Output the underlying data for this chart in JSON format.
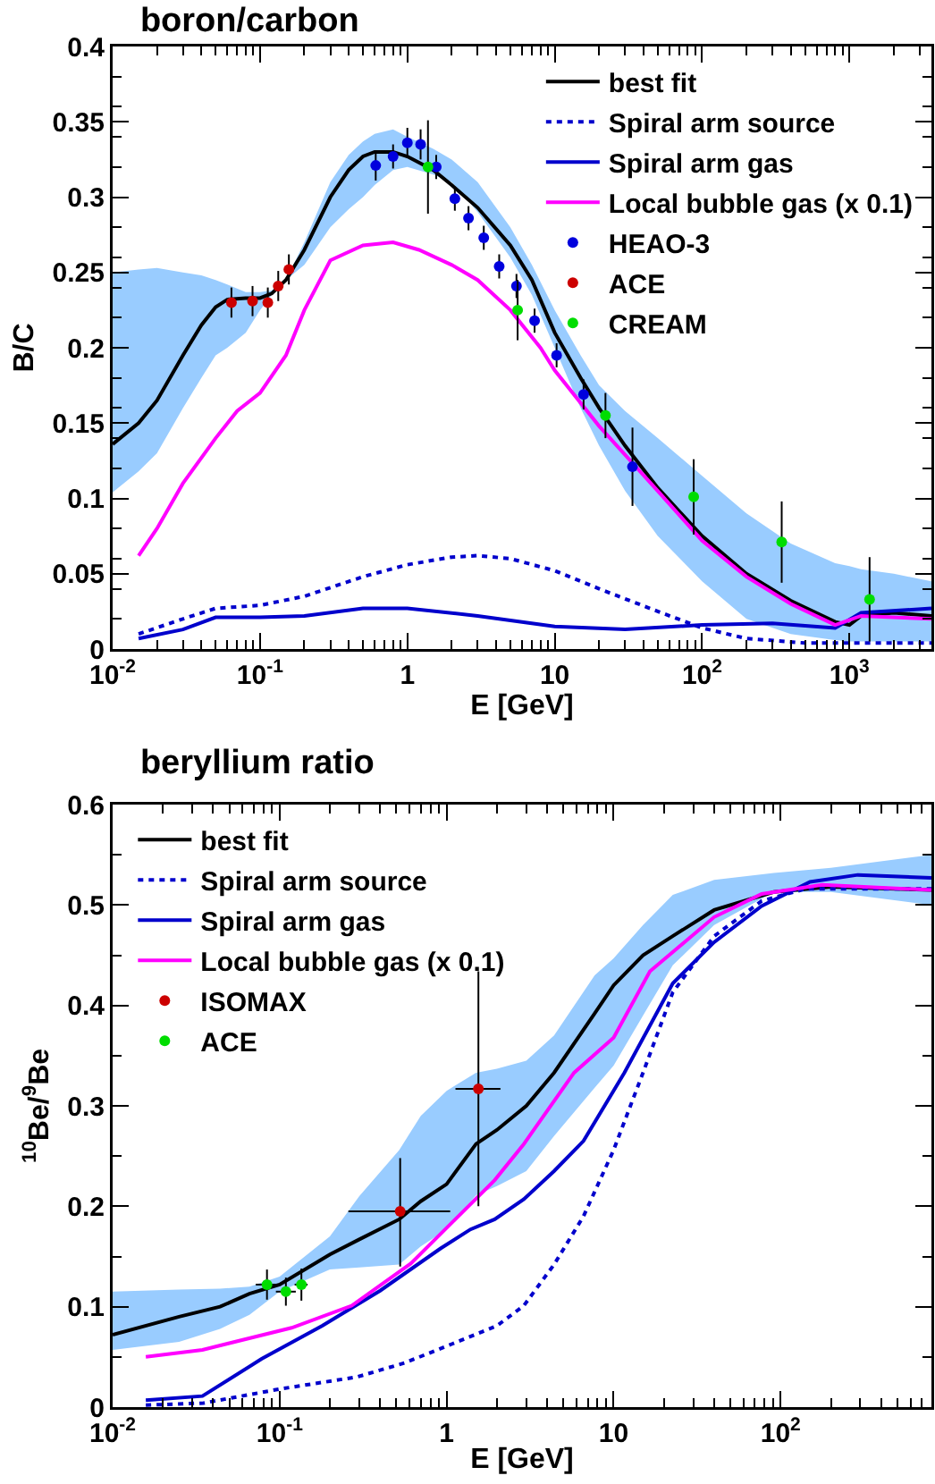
{
  "chart_data": [
    {
      "type": "line",
      "title": "boron/carbon",
      "xlabel": "E [GeV]",
      "ylabel": "B/C",
      "log": "x",
      "grid": false,
      "legend": "top right",
      "xlim": [
        0.01,
        3600
      ],
      "xticks": [
        {
          "value": 0.01,
          "label": "10$^{-2}$"
        },
        {
          "value": 0.1,
          "label": "10$^{-1}$"
        },
        {
          "value": 1,
          "label": "1"
        },
        {
          "value": 10,
          "label": "10"
        },
        {
          "value": 100,
          "label": "10$^{2}$"
        },
        {
          "value": 1000,
          "label": "10$^{3}$"
        }
      ],
      "ylim": [
        0,
        0.4
      ],
      "yticks": [
        0,
        0.05,
        0.1,
        0.15,
        0.2,
        0.25,
        0.3,
        0.35,
        0.4
      ],
      "series": [
        {
          "name": "best fit",
          "color": "#000000",
          "line_style": "solid",
          "marker": "none",
          "x": [
            0.01,
            0.015,
            0.02,
            0.03,
            0.04,
            0.05,
            0.06,
            0.08,
            0.1,
            0.12,
            0.15,
            0.2,
            0.3,
            0.4,
            0.5,
            0.6,
            0.8,
            1,
            1.5,
            2,
            3,
            5,
            7,
            10,
            15,
            20,
            30,
            50,
            100,
            200,
            400,
            800,
            1000,
            1200,
            2000,
            3600
          ],
          "values": [
            0.136,
            0.15,
            0.165,
            0.195,
            0.215,
            0.227,
            0.232,
            0.233,
            0.233,
            0.236,
            0.245,
            0.265,
            0.3,
            0.318,
            0.327,
            0.33,
            0.33,
            0.327,
            0.318,
            0.308,
            0.293,
            0.268,
            0.245,
            0.21,
            0.18,
            0.16,
            0.135,
            0.107,
            0.075,
            0.05,
            0.032,
            0.018,
            0.016,
            0.022,
            0.024,
            0.022
          ],
          "lower": [
            0.104,
            0.118,
            0.13,
            0.16,
            0.18,
            0.195,
            0.2,
            0.21,
            0.225,
            0.235,
            0.245,
            0.255,
            0.28,
            0.292,
            0.3,
            0.308,
            0.318,
            0.32,
            0.315,
            0.31,
            0.29,
            0.26,
            0.235,
            0.2,
            0.16,
            0.135,
            0.105,
            0.075,
            0.045,
            0.02,
            0.01,
            0.006,
            0.005,
            0.005,
            0.005,
            0.005
          ],
          "upper": [
            0.25,
            0.252,
            0.253,
            0.25,
            0.248,
            0.245,
            0.242,
            0.237,
            0.237,
            0.238,
            0.245,
            0.27,
            0.31,
            0.328,
            0.337,
            0.342,
            0.345,
            0.34,
            0.332,
            0.325,
            0.31,
            0.28,
            0.255,
            0.225,
            0.195,
            0.175,
            0.158,
            0.14,
            0.115,
            0.09,
            0.07,
            0.057,
            0.055,
            0.053,
            0.05,
            0.045
          ]
        },
        {
          "name": "Spiral arm source",
          "color": "#0000cc",
          "line_style": "dotted",
          "marker": "none",
          "x": [
            0.015,
            0.03,
            0.05,
            0.1,
            0.2,
            0.5,
            1,
            2,
            3,
            5,
            10,
            20,
            50,
            100,
            200,
            500,
            1000,
            3600
          ],
          "values": [
            0.01,
            0.02,
            0.027,
            0.029,
            0.035,
            0.048,
            0.056,
            0.061,
            0.062,
            0.06,
            0.052,
            0.04,
            0.025,
            0.014,
            0.007,
            0.004,
            0.004,
            0.004
          ]
        },
        {
          "name": "Spiral arm gas",
          "color": "#0000cc",
          "line_style": "solid",
          "marker": "none",
          "x": [
            0.015,
            0.03,
            0.05,
            0.1,
            0.2,
            0.5,
            1,
            3,
            10,
            30,
            100,
            300,
            800,
            1200,
            3600
          ],
          "values": [
            0.007,
            0.013,
            0.021,
            0.021,
            0.022,
            0.027,
            0.027,
            0.022,
            0.015,
            0.013,
            0.016,
            0.017,
            0.014,
            0.024,
            0.027
          ]
        },
        {
          "name": "Local bubble gas (x 0.1)",
          "color": "#ff00ff",
          "line_style": "solid",
          "marker": "none",
          "x": [
            0.015,
            0.02,
            0.03,
            0.05,
            0.07,
            0.1,
            0.15,
            0.2,
            0.3,
            0.5,
            0.8,
            1.2,
            2,
            3,
            5,
            8,
            10,
            20,
            50,
            100,
            200,
            400,
            800,
            1200,
            3600
          ],
          "values": [
            0.062,
            0.08,
            0.11,
            0.14,
            0.158,
            0.17,
            0.195,
            0.225,
            0.258,
            0.268,
            0.27,
            0.265,
            0.255,
            0.245,
            0.225,
            0.2,
            0.185,
            0.148,
            0.105,
            0.072,
            0.048,
            0.03,
            0.016,
            0.022,
            0.02
          ]
        },
        {
          "name": "HEAO-3",
          "type": "scatter",
          "color": "#0000dd",
          "marker": "circle",
          "x": [
            0.61,
            0.8,
            1.0,
            1.23,
            1.57,
            2.1,
            2.6,
            3.3,
            4.2,
            5.5,
            7.3,
            10.3,
            15.7,
            33.7
          ],
          "values": [
            0.321,
            0.327,
            0.336,
            0.335,
            0.32,
            0.299,
            0.286,
            0.273,
            0.254,
            0.241,
            0.218,
            0.195,
            0.169,
            0.121
          ],
          "errors": [
            0.01,
            0.008,
            0.01,
            0.01,
            0.008,
            0.008,
            0.008,
            0.008,
            0.008,
            0.008,
            0.008,
            0.008,
            0.01,
            0.026
          ]
        },
        {
          "name": "ACE",
          "type": "scatter",
          "color": "#cc0000",
          "marker": "circle",
          "x": [
            0.064,
            0.089,
            0.113,
            0.133,
            0.157
          ],
          "values": [
            0.23,
            0.231,
            0.23,
            0.241,
            0.252
          ],
          "errors": [
            0.01,
            0.01,
            0.01,
            0.01,
            0.01
          ]
        },
        {
          "name": "CREAM",
          "type": "scatter",
          "color": "#00dd00",
          "marker": "circle",
          "x": [
            1.38,
            5.6,
            22.1,
            87.7,
            347,
            1370
          ],
          "values": [
            0.32,
            0.225,
            0.155,
            0.101,
            0.071,
            0.033
          ],
          "errors": [
            0.031,
            0.02,
            0.015,
            0.025,
            0.027,
            0.028
          ]
        }
      ]
    },
    {
      "type": "line",
      "title": "beryllium ratio",
      "xlabel": "E [GeV]",
      "ylabel": "$^{10}$Be/$^{9}$Be",
      "log": "x",
      "grid": false,
      "legend": "top left",
      "xlim": [
        0.01,
        800
      ],
      "xticks": [
        {
          "value": 0.01,
          "label": "10$^{-2}$"
        },
        {
          "value": 0.1,
          "label": "10$^{-1}$"
        },
        {
          "value": 1,
          "label": "1"
        },
        {
          "value": 10,
          "label": "10"
        },
        {
          "value": 100,
          "label": "10$^{2}$"
        }
      ],
      "ylim": [
        0,
        0.6
      ],
      "yticks": [
        0,
        0.1,
        0.2,
        0.3,
        0.4,
        0.5,
        0.6
      ],
      "series": [
        {
          "name": "best fit",
          "color": "#000000",
          "line_style": "solid",
          "marker": "none",
          "x": [
            0.01,
            0.025,
            0.044,
            0.066,
            0.1,
            0.2,
            0.3,
            0.52,
            0.7,
            1,
            1.5,
            2,
            3,
            4.4,
            7.7,
            10,
            15,
            22.6,
            40,
            91,
            200,
            800
          ],
          "values": [
            0.072,
            0.09,
            0.1,
            0.113,
            0.122,
            0.152,
            0.167,
            0.187,
            0.205,
            0.222,
            0.262,
            0.276,
            0.3,
            0.333,
            0.392,
            0.42,
            0.45,
            0.469,
            0.495,
            0.513,
            0.518,
            0.515
          ],
          "lower": [
            0.057,
            0.065,
            0.078,
            0.092,
            0.115,
            0.137,
            0.139,
            0.142,
            0.16,
            0.177,
            0.211,
            0.22,
            0.235,
            0.27,
            0.318,
            0.34,
            0.39,
            0.44,
            0.48,
            0.513,
            0.513,
            0.5
          ],
          "upper": [
            0.115,
            0.117,
            0.118,
            0.12,
            0.13,
            0.17,
            0.21,
            0.256,
            0.29,
            0.315,
            0.333,
            0.337,
            0.345,
            0.37,
            0.43,
            0.447,
            0.48,
            0.51,
            0.525,
            0.532,
            0.537,
            0.55
          ]
        },
        {
          "name": "Spiral arm source",
          "color": "#0000cc",
          "line_style": "dotted",
          "marker": "none",
          "x": [
            0.0158,
            0.035,
            0.1,
            0.29,
            0.56,
            1.08,
            2,
            2.9,
            4.4,
            6.6,
            10,
            15,
            22.6,
            40,
            77,
            140,
            800
          ],
          "values": [
            0.002,
            0.004,
            0.018,
            0.03,
            0.044,
            0.063,
            0.081,
            0.101,
            0.142,
            0.19,
            0.256,
            0.333,
            0.413,
            0.469,
            0.504,
            0.516,
            0.516
          ]
        },
        {
          "name": "Spiral arm gas",
          "color": "#0000cc",
          "line_style": "solid",
          "marker": "none",
          "x": [
            0.0158,
            0.0345,
            0.078,
            0.18,
            0.4,
            0.92,
            1.39,
            1.94,
            2.9,
            4.4,
            6.6,
            11.6,
            22.6,
            40,
            77,
            150,
            290,
            800
          ],
          "values": [
            0.007,
            0.011,
            0.048,
            0.081,
            0.116,
            0.158,
            0.177,
            0.187,
            0.207,
            0.235,
            0.265,
            0.333,
            0.422,
            0.463,
            0.499,
            0.523,
            0.53,
            0.527
          ]
        },
        {
          "name": "Local bubble gas (x 0.1)",
          "color": "#ff00ff",
          "line_style": "solid",
          "marker": "none",
          "x": [
            0.0158,
            0.0345,
            0.118,
            0.27,
            0.61,
            1.94,
            2.9,
            5.8,
            10,
            16.5,
            40,
            77,
            177,
            800
          ],
          "values": [
            0.05,
            0.057,
            0.079,
            0.101,
            0.143,
            0.226,
            0.262,
            0.333,
            0.368,
            0.434,
            0.488,
            0.511,
            0.52,
            0.515
          ]
        },
        {
          "name": "ISOMAX",
          "type": "scatter",
          "color": "#cc0000",
          "marker": "circle",
          "x": [
            0.527,
            1.55
          ],
          "values": [
            0.195,
            0.317
          ],
          "errors": [
            [
              0.14,
              0.248
            ],
            [
              0.2,
              0.434
            ]
          ],
          "xerrors": [
            [
              0.258,
              1.05
            ],
            [
              1.13,
              2.1
            ]
          ]
        },
        {
          "name": "ACE",
          "type": "scatter",
          "color": "#00dd00",
          "marker": "circle",
          "x": [
            0.084,
            0.109,
            0.135
          ],
          "values": [
            0.122,
            0.115,
            0.122
          ],
          "errors": [
            0.015,
            0.014,
            0.016
          ],
          "xerrors": [
            [
              0.072,
              0.099
            ],
            [
              0.095,
              0.125
            ],
            [
              0.123,
              0.147
            ]
          ]
        }
      ]
    }
  ]
}
